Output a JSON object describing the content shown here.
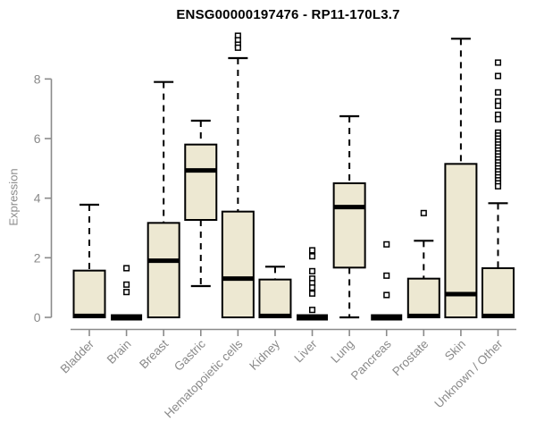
{
  "chart_data": {
    "type": "boxplot",
    "title": "ENSG00000197476 - RP11-170L3.7",
    "xlabel": "",
    "ylabel": "Expression",
    "yticks": [
      0,
      2,
      4,
      6,
      8
    ],
    "ylim": [
      0,
      9.6
    ],
    "grid": false,
    "legend": "none",
    "categories": [
      "Bladder",
      "Brain",
      "Breast",
      "Gastric",
      "Hematopoietic cells",
      "Kidney",
      "Liver",
      "Lung",
      "Pancreas",
      "Prostate",
      "Skin",
      "Unknown / Other"
    ],
    "series": [
      {
        "name": "Bladder",
        "min": 0,
        "q1": 0,
        "median": 0.05,
        "q3": 1.57,
        "max": 3.78,
        "outliers": []
      },
      {
        "name": "Brain",
        "min": 0,
        "q1": 0,
        "median": 0,
        "q3": 0,
        "max": 0,
        "outliers": [
          1.65,
          1.1,
          0.85
        ]
      },
      {
        "name": "Breast",
        "min": 0,
        "q1": 0,
        "median": 1.9,
        "q3": 3.17,
        "max": 7.9,
        "outliers": []
      },
      {
        "name": "Gastric",
        "min": 1.05,
        "q1": 3.27,
        "median": 4.93,
        "q3": 5.8,
        "max": 6.6,
        "outliers": []
      },
      {
        "name": "Hematopoietic cells",
        "min": 0,
        "q1": 0,
        "median": 1.3,
        "q3": 3.55,
        "max": 8.7,
        "outliers": [
          9.45,
          9.3,
          9.15,
          9.05
        ]
      },
      {
        "name": "Kidney",
        "min": 0,
        "q1": 0,
        "median": 0.05,
        "q3": 1.27,
        "max": 1.7,
        "outliers": []
      },
      {
        "name": "Liver",
        "min": 0,
        "q1": 0,
        "median": 0,
        "q3": 0,
        "max": 0,
        "outliers": [
          2.25,
          2.05,
          1.55,
          1.3,
          1.15,
          1.0,
          0.8,
          0.25
        ]
      },
      {
        "name": "Lung",
        "min": 0,
        "q1": 1.67,
        "median": 3.7,
        "q3": 4.5,
        "max": 6.75,
        "outliers": []
      },
      {
        "name": "Pancreas",
        "min": 0,
        "q1": 0,
        "median": 0,
        "q3": 0,
        "max": 0,
        "outliers": [
          2.45,
          1.4,
          0.75
        ]
      },
      {
        "name": "Prostate",
        "min": 0,
        "q1": 0,
        "median": 0.05,
        "q3": 1.3,
        "max": 2.57,
        "outliers": [
          3.5
        ]
      },
      {
        "name": "Skin",
        "min": 0,
        "q1": 0,
        "median": 0.78,
        "q3": 5.15,
        "max": 9.35,
        "outliers": []
      },
      {
        "name": "Unknown / Other",
        "min": 0,
        "q1": 0,
        "median": 0.05,
        "q3": 1.65,
        "max": 3.83,
        "outliers": [
          8.55,
          8.1,
          7.55,
          7.25,
          7.1,
          6.8,
          6.65,
          6.2,
          6.1,
          6.0,
          5.9,
          5.8,
          5.7,
          5.6,
          5.5,
          5.4,
          5.3,
          5.2,
          5.1,
          5.0,
          4.9,
          4.8,
          4.7,
          4.6,
          4.5,
          4.4
        ]
      }
    ],
    "colors": {
      "box_fill": "#EDE8D2",
      "box_stroke": "#000000",
      "median": "#000000",
      "whisker": "#000000",
      "axis": "#8a8a8a",
      "tick_label": "#8a8a8a",
      "title": "#000000",
      "background": "#ffffff"
    }
  }
}
